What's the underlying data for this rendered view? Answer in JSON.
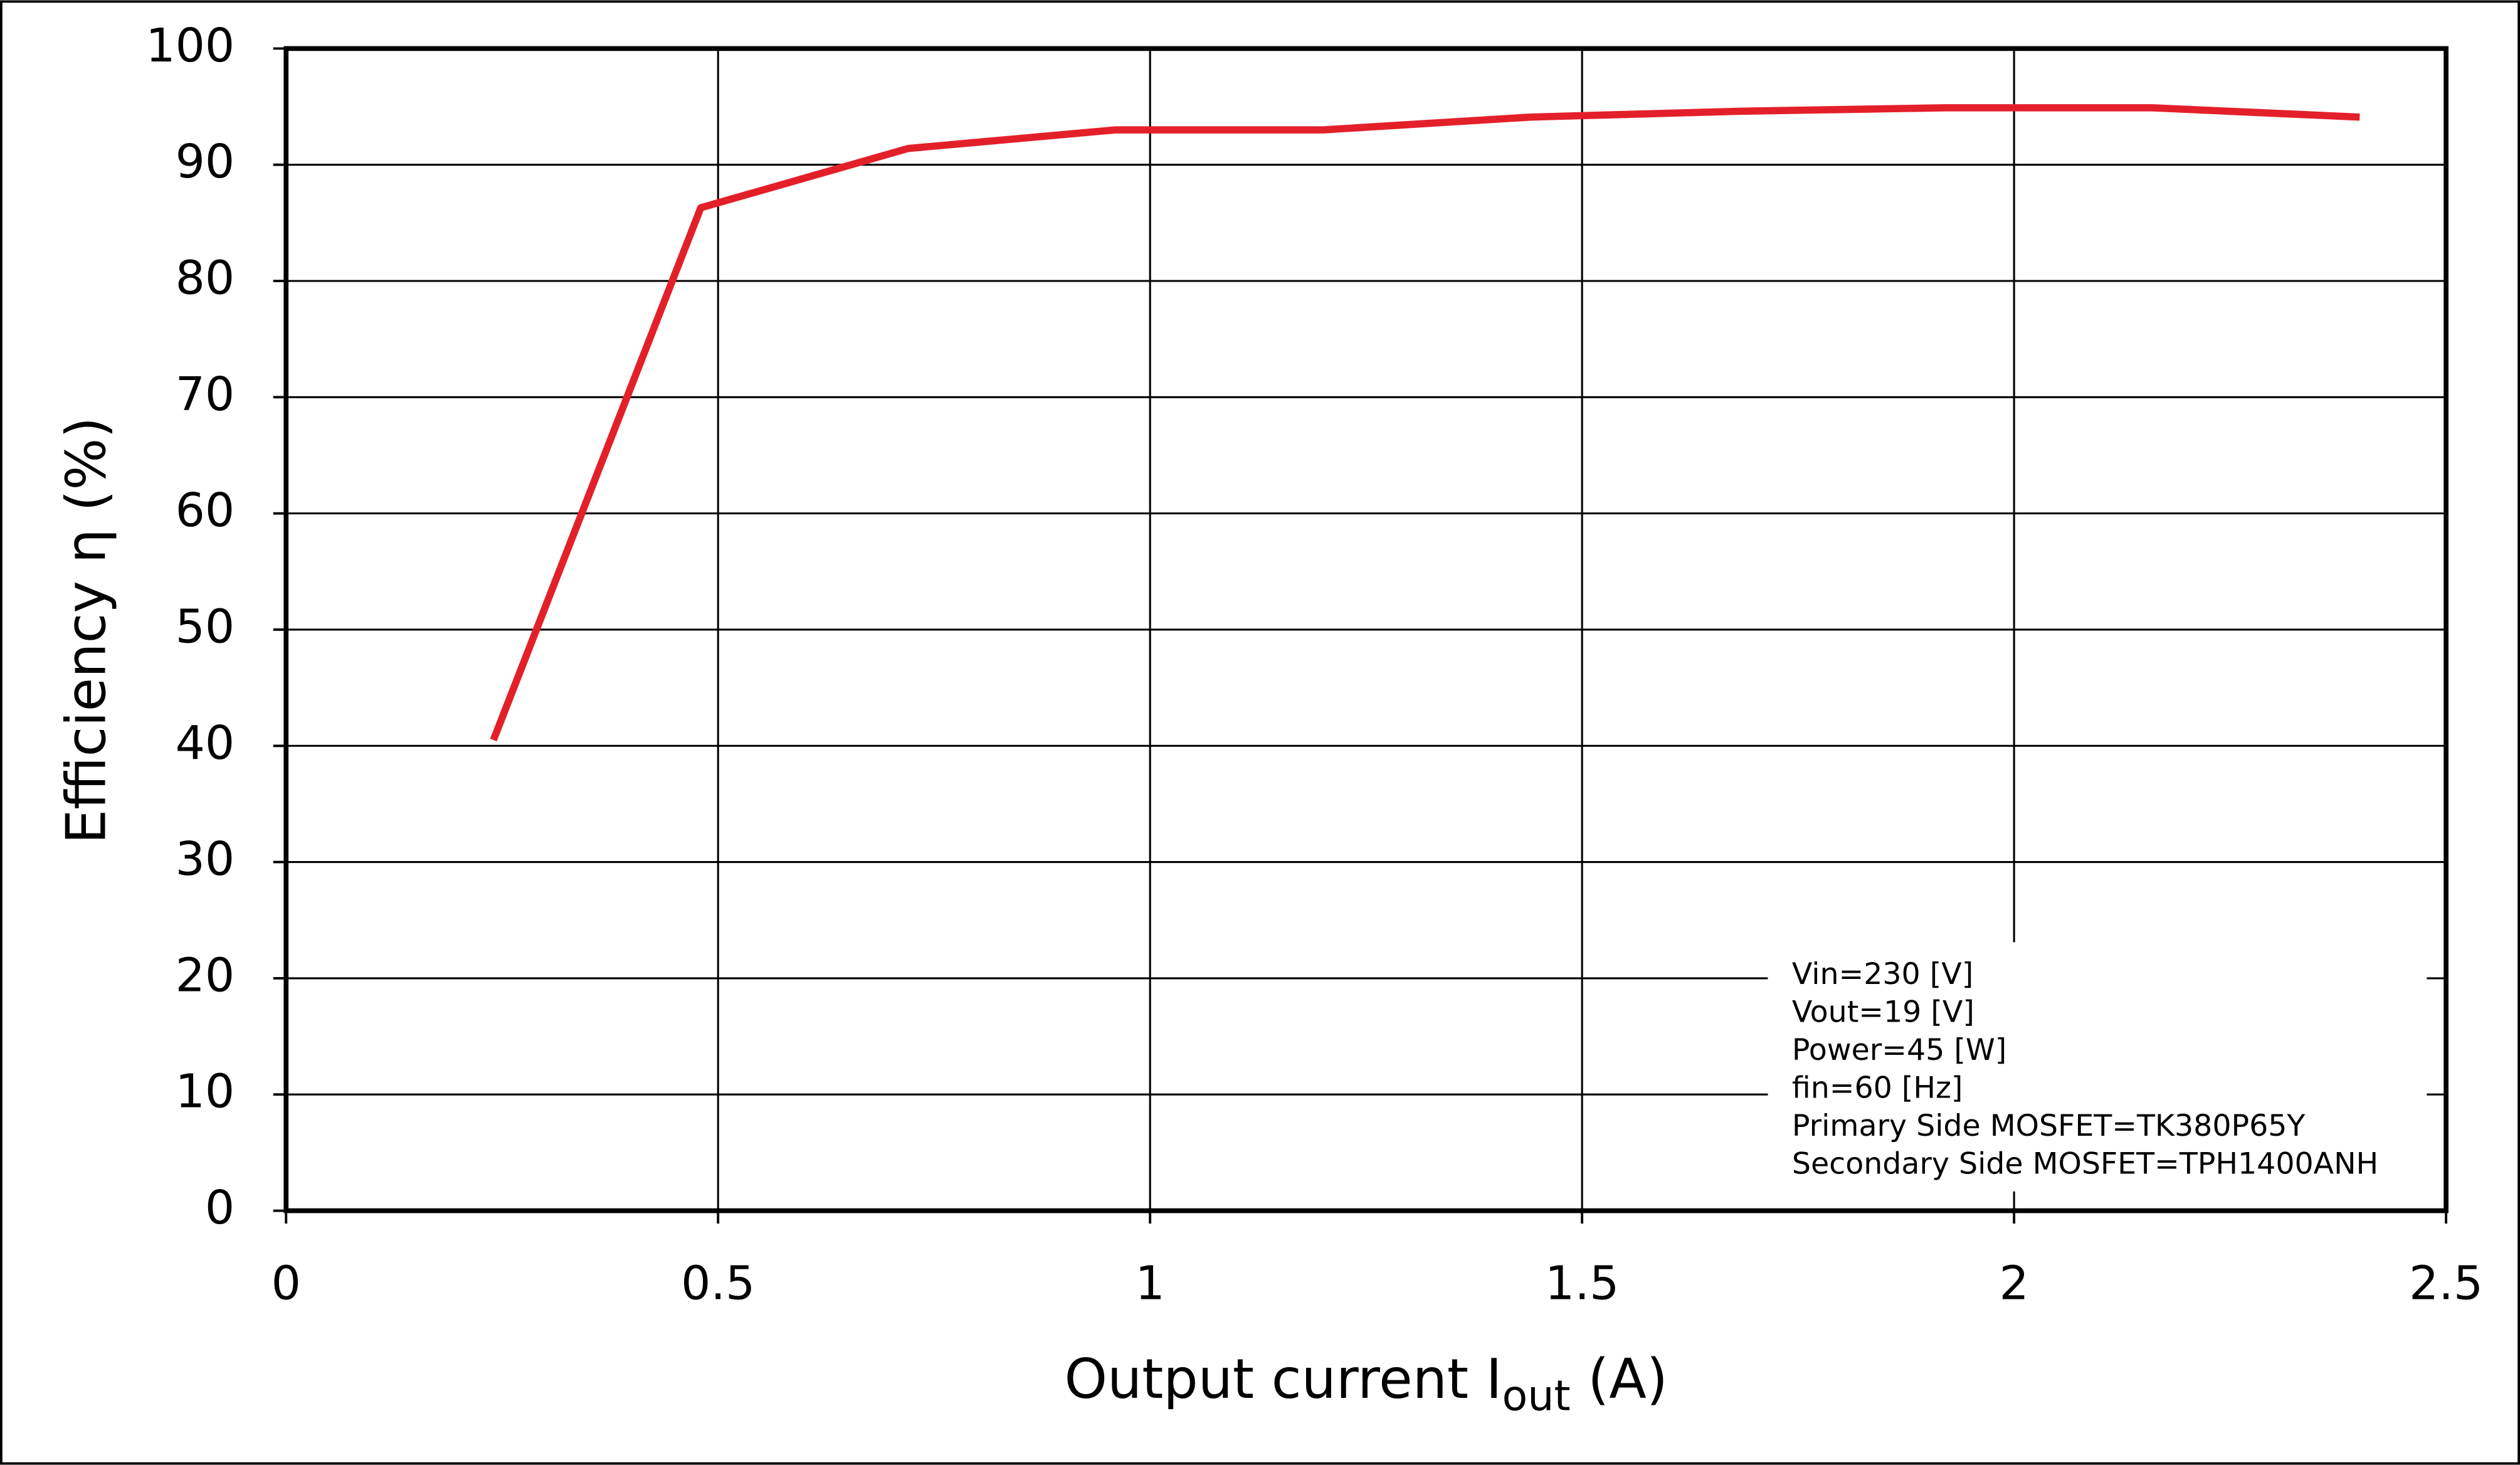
{
  "chart_data": {
    "type": "line",
    "x_label": {
      "text": "Output current  I",
      "subscript": "out",
      "suffix": " (A)"
    },
    "y_label": "Efficiency  η (%)",
    "x": [
      0.24,
      0.48,
      0.72,
      0.96,
      1.2,
      1.44,
      1.68,
      1.92,
      2.16,
      2.4
    ],
    "series": [
      {
        "color": "#e3202a",
        "values": [
          40.5,
          86.3,
          91.4,
          93.0,
          93.0,
          94.1,
          94.6,
          94.9,
          94.9,
          94.1
        ]
      }
    ],
    "xlim": [
      0,
      2.5
    ],
    "xticks": [
      0,
      0.5,
      1,
      1.5,
      2,
      2.5
    ],
    "ylim": [
      0,
      100
    ],
    "yticks": [
      0,
      10,
      20,
      30,
      40,
      50,
      60,
      70,
      80,
      90,
      100
    ],
    "grid": true,
    "annotations": [
      "Vin=230 [V]",
      "Vout=19 [V]",
      "Power=45 [W]",
      "fin=60 [Hz]",
      "Primary Side MOSFET=TK380P65Y",
      "Secondary Side MOSFET=TPH1400ANH"
    ]
  }
}
